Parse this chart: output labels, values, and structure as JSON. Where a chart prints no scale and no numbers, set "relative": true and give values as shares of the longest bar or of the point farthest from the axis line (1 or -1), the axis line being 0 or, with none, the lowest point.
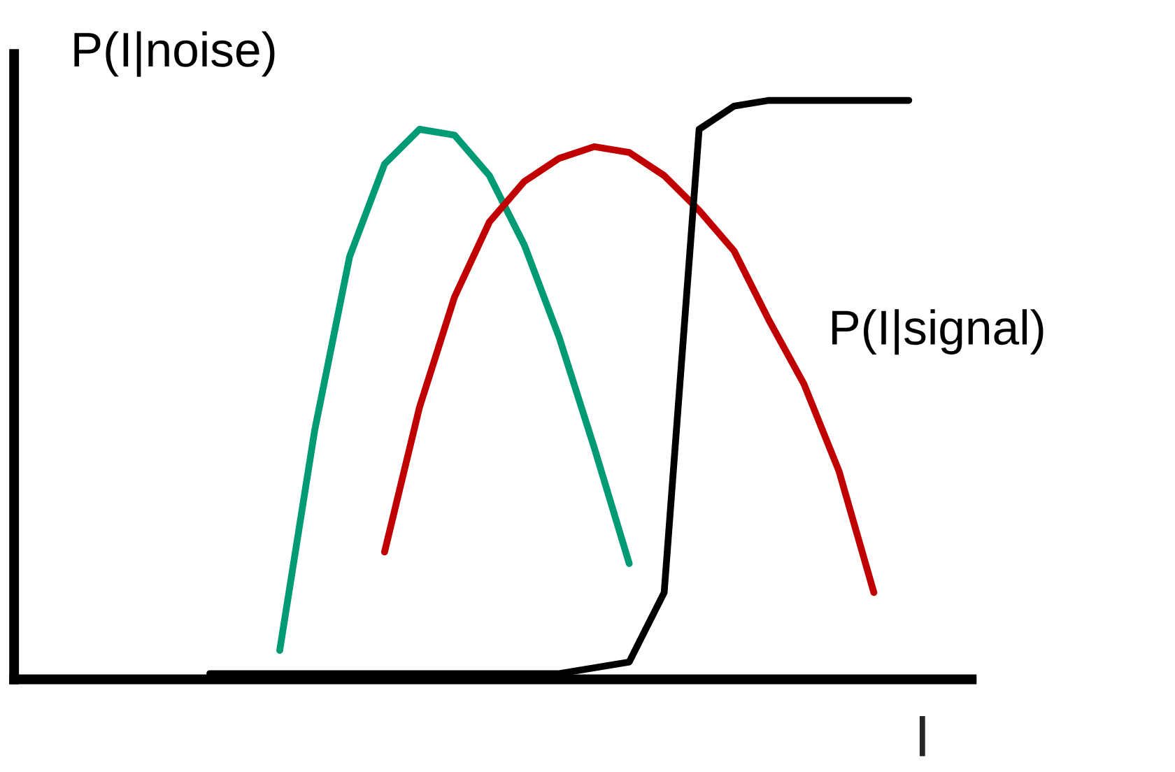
{
  "chart_data": {
    "type": "line",
    "relative": true,
    "xlabel": "I",
    "legend": false,
    "categories": [
      null,
      null,
      null,
      null,
      null,
      null,
      null,
      null,
      null,
      null,
      null,
      null,
      null,
      null,
      null,
      null,
      null,
      null,
      null,
      null,
      null
    ],
    "series": [
      {
        "name": "P(I|noise)",
        "color": "#009a74",
        "values": [
          null,
          null,
          0.05,
          0.43,
          0.73,
          0.89,
          0.95,
          0.94,
          0.87,
          0.75,
          0.59,
          0.4,
          0.2,
          null,
          null,
          null,
          null,
          null,
          null,
          null,
          null
        ]
      },
      {
        "name": "P(I|signal)",
        "color": "#c00000",
        "values": [
          null,
          null,
          null,
          null,
          null,
          0.22,
          0.47,
          0.66,
          0.79,
          0.86,
          0.9,
          0.92,
          0.91,
          0.87,
          0.81,
          0.74,
          0.62,
          0.51,
          0.36,
          0.15,
          null
        ]
      },
      {
        "color": "#000000",
        "values": [
          0.01,
          0.01,
          0.01,
          0.01,
          0.01,
          0.01,
          0.01,
          0.01,
          0.01,
          0.01,
          0.01,
          0.02,
          0.03,
          0.15,
          0.95,
          0.99,
          1.0,
          1.0,
          1.0,
          1.0,
          1.0
        ]
      }
    ]
  }
}
